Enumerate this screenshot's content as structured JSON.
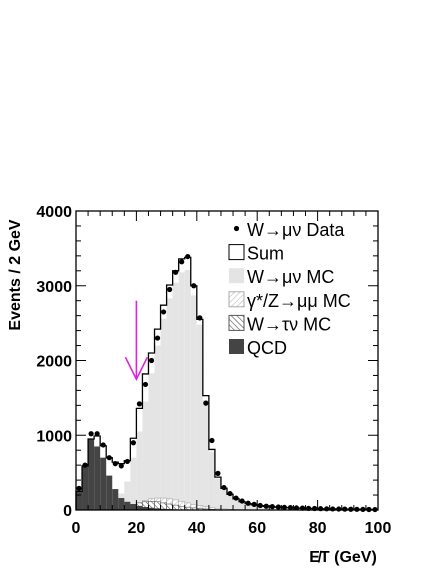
{
  "chart_data": {
    "type": "bar",
    "title": "",
    "xlabel": "E̸T (GeV)",
    "ylabel": "Events / 2 GeV",
    "xlim": [
      0,
      100
    ],
    "ylim": [
      0,
      4000
    ],
    "xticks": [
      "0",
      "20",
      "40",
      "60",
      "80",
      "100"
    ],
    "yticks": [
      "0",
      "1000",
      "2000",
      "3000",
      "4000"
    ],
    "bin_width": 2,
    "bin_edges_start": [
      0,
      2,
      4,
      6,
      8,
      10,
      12,
      14,
      16,
      18,
      20,
      22,
      24,
      26,
      28,
      30,
      32,
      34,
      36,
      38,
      40,
      42,
      44,
      46,
      48,
      50,
      52,
      54,
      56,
      58,
      60,
      62,
      64,
      66,
      68,
      70,
      72,
      74,
      76,
      78,
      80,
      82,
      84,
      86,
      88,
      90,
      92,
      94,
      96,
      98
    ],
    "series": [
      {
        "name": "W→μν Data",
        "style": "points",
        "x": [
          1,
          3,
          5,
          7,
          9,
          11,
          13,
          15,
          17,
          19,
          21,
          23,
          25,
          27,
          29,
          31,
          33,
          35,
          37,
          39,
          41,
          43,
          45,
          47,
          49,
          51,
          53,
          55,
          57,
          59,
          61,
          63,
          65,
          67,
          69,
          71,
          73,
          75,
          77,
          79,
          81,
          83,
          85,
          87,
          89,
          91,
          93,
          95,
          97,
          99
        ],
        "values": [
          290,
          600,
          1020,
          1020,
          870,
          700,
          620,
          590,
          650,
          900,
          1420,
          1680,
          2000,
          2300,
          2650,
          2950,
          3180,
          3320,
          3390,
          3000,
          2570,
          1430,
          930,
          490,
          300,
          220,
          160,
          120,
          90,
          75,
          60,
          50,
          45,
          40,
          35,
          32,
          28,
          25,
          22,
          20,
          18,
          16,
          14,
          13,
          12,
          10,
          9,
          8,
          7,
          6
        ]
      },
      {
        "name": "Sum",
        "style": "outline",
        "values": [
          250,
          590,
          950,
          990,
          860,
          700,
          640,
          620,
          660,
          960,
          1360,
          1820,
          2100,
          2420,
          2740,
          3010,
          3200,
          3360,
          3380,
          3000,
          2550,
          1530,
          810,
          440,
          290,
          210,
          150,
          110,
          85,
          70,
          58,
          48,
          42,
          37,
          33,
          30,
          27,
          24,
          21,
          19,
          17,
          15,
          14,
          13,
          12,
          10,
          9,
          8,
          7,
          6
        ]
      },
      {
        "name": "W→μν MC",
        "style": "fill-light",
        "values": [
          0,
          0,
          0,
          0,
          0,
          0,
          120,
          220,
          380,
          700,
          1050,
          1450,
          1830,
          2200,
          2560,
          2830,
          3040,
          3180,
          3210,
          2870,
          2480,
          1470,
          780,
          420,
          280,
          200,
          145,
          105,
          80,
          65,
          55,
          45,
          40,
          35,
          31,
          28,
          25,
          22,
          20,
          18,
          16,
          14,
          13,
          12,
          11,
          9,
          8,
          7,
          6,
          5
        ]
      },
      {
        "name": "γ*/Z→μμ MC",
        "style": "hatch-light",
        "values": [
          0,
          0,
          0,
          0,
          0,
          0,
          0,
          10,
          30,
          60,
          95,
          125,
          150,
          160,
          160,
          150,
          135,
          115,
          95,
          75,
          60,
          45,
          32,
          22,
          15,
          10,
          6,
          4,
          3,
          2,
          0,
          0,
          0,
          0,
          0,
          0,
          0,
          0,
          0,
          0,
          0,
          0,
          0,
          0,
          0,
          0,
          0,
          0,
          0,
          0
        ]
      },
      {
        "name": "W→τν MC",
        "style": "hatch-dark",
        "values": [
          0,
          0,
          0,
          0,
          0,
          0,
          0,
          15,
          40,
          70,
          95,
          110,
          115,
          110,
          95,
          80,
          65,
          50,
          38,
          28,
          20,
          14,
          9,
          5,
          3,
          2,
          0,
          0,
          0,
          0,
          0,
          0,
          0,
          0,
          0,
          0,
          0,
          0,
          0,
          0,
          0,
          0,
          0,
          0,
          0,
          0,
          0,
          0,
          0,
          0
        ]
      },
      {
        "name": "QCD",
        "style": "fill-dark",
        "values": [
          250,
          590,
          950,
          850,
          700,
          460,
          280,
          160,
          110,
          80,
          55,
          40,
          30,
          22,
          16,
          12,
          9,
          7,
          5,
          4,
          3,
          2,
          2,
          1,
          1,
          0,
          0,
          0,
          0,
          0,
          0,
          0,
          0,
          0,
          0,
          0,
          0,
          0,
          0,
          0,
          0,
          0,
          0,
          0,
          0,
          0,
          0,
          0,
          0,
          0
        ]
      }
    ],
    "annotations": [
      {
        "type": "arrow",
        "color": "#e020e0",
        "x": 20,
        "y_from": 2800,
        "y_to": 1750,
        "direction": "down"
      }
    ],
    "legend": {
      "placement": "top-right",
      "entries": [
        "W→μν Data",
        "Sum",
        "W→μν MC",
        "γ*/Z→μμ MC",
        "W→τν MC",
        "QCD"
      ]
    },
    "grid": false,
    "colors": {
      "data": "#000000",
      "sum": "#000000",
      "wmunu_mc": "#e4e4e4",
      "zmumu_mc": "#c8c8c8",
      "wtaunu_mc": "#777777",
      "qcd": "#444444",
      "arrow": "#e020e0"
    }
  }
}
